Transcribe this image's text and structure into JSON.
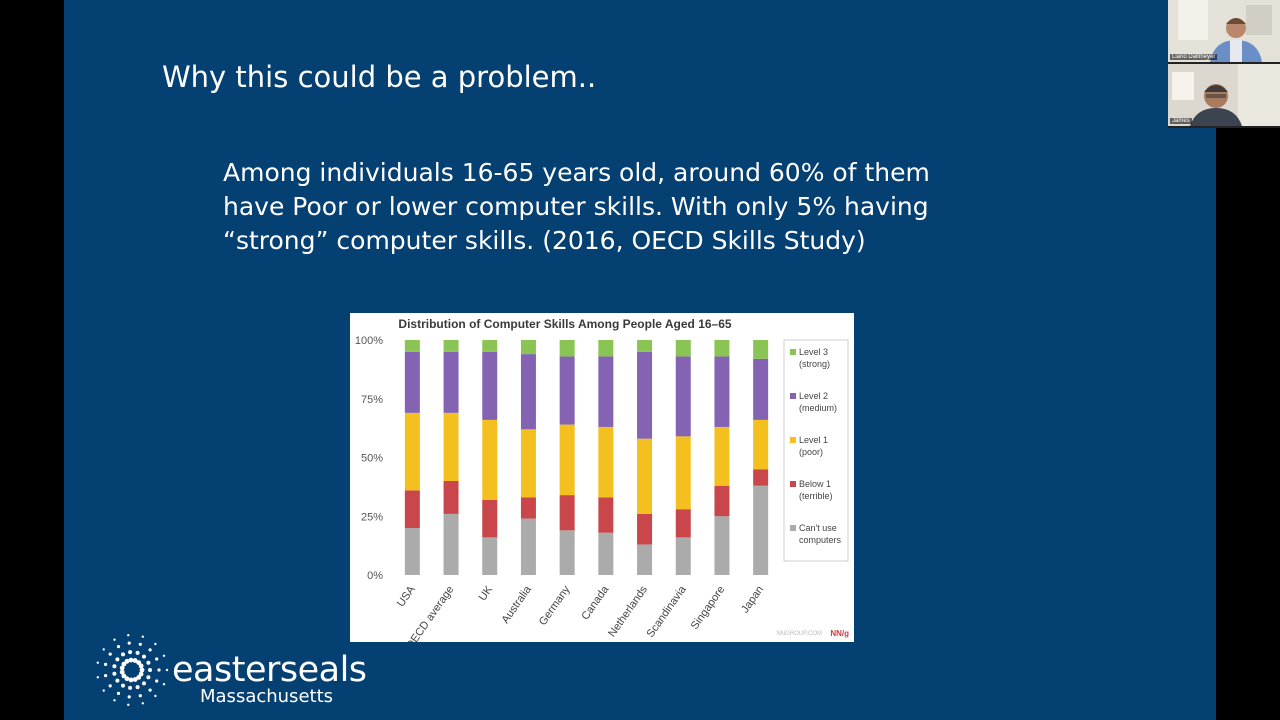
{
  "slide": {
    "title": "Why this could be a problem..",
    "body": "Among individuals 16-65 years old, around 60% of them have Poor or lower computer skills. With only 5% having “strong” computer skills. (2016, OECD Skills Study)",
    "background_color": "#054072"
  },
  "chart_data": {
    "type": "bar",
    "stacked": true,
    "title": "Distribution of Computer Skills Among People Aged 16–65",
    "categories": [
      "USA",
      "OECD average",
      "UK",
      "Australia",
      "Germany",
      "Canada",
      "Netherlands",
      "Scandinavia",
      "Singapore",
      "Japan"
    ],
    "series": [
      {
        "name": "Can't use computers",
        "color": "#ababab",
        "values": [
          20,
          26,
          16,
          24,
          19,
          18,
          13,
          16,
          25,
          38
        ]
      },
      {
        "name": "Below 1 (terrible)",
        "color": "#c9474b",
        "values": [
          16,
          14,
          16,
          9,
          15,
          15,
          13,
          12,
          13,
          7
        ]
      },
      {
        "name": "Level 1 (poor)",
        "color": "#f4c01f",
        "values": [
          33,
          29,
          34,
          29,
          30,
          30,
          32,
          31,
          25,
          21
        ]
      },
      {
        "name": "Level 2 (medium)",
        "color": "#8563b3",
        "values": [
          26,
          26,
          29,
          32,
          29,
          30,
          37,
          34,
          30,
          26
        ]
      },
      {
        "name": "Level 3 (strong)",
        "color": "#89c454",
        "values": [
          5,
          5,
          5,
          6,
          7,
          7,
          5,
          7,
          7,
          8
        ]
      }
    ],
    "legend": [
      {
        "line1": "Level 3",
        "line2": "(strong)",
        "color": "#89c454"
      },
      {
        "line1": "Level 2",
        "line2": "(medium)",
        "color": "#8563b3"
      },
      {
        "line1": "Level 1",
        "line2": "(poor)",
        "color": "#f4c01f"
      },
      {
        "line1": "Below 1",
        "line2": "(terrible)",
        "color": "#c9474b"
      },
      {
        "line1": "Can't use",
        "line2": "computers",
        "color": "#ababab"
      }
    ],
    "ylim": [
      0,
      100
    ],
    "yticks": [
      "0%",
      "25%",
      "50%",
      "75%",
      "100%"
    ],
    "legend_position": "right",
    "source": "NNGROUP.COM",
    "brand": "NN/g",
    "grid": false
  },
  "logo": {
    "name": "easterseals",
    "subtitle": "Massachusetts"
  },
  "video": {
    "participants": [
      {
        "name": "Liano Dallmeyer"
      },
      {
        "name": "James"
      }
    ]
  }
}
